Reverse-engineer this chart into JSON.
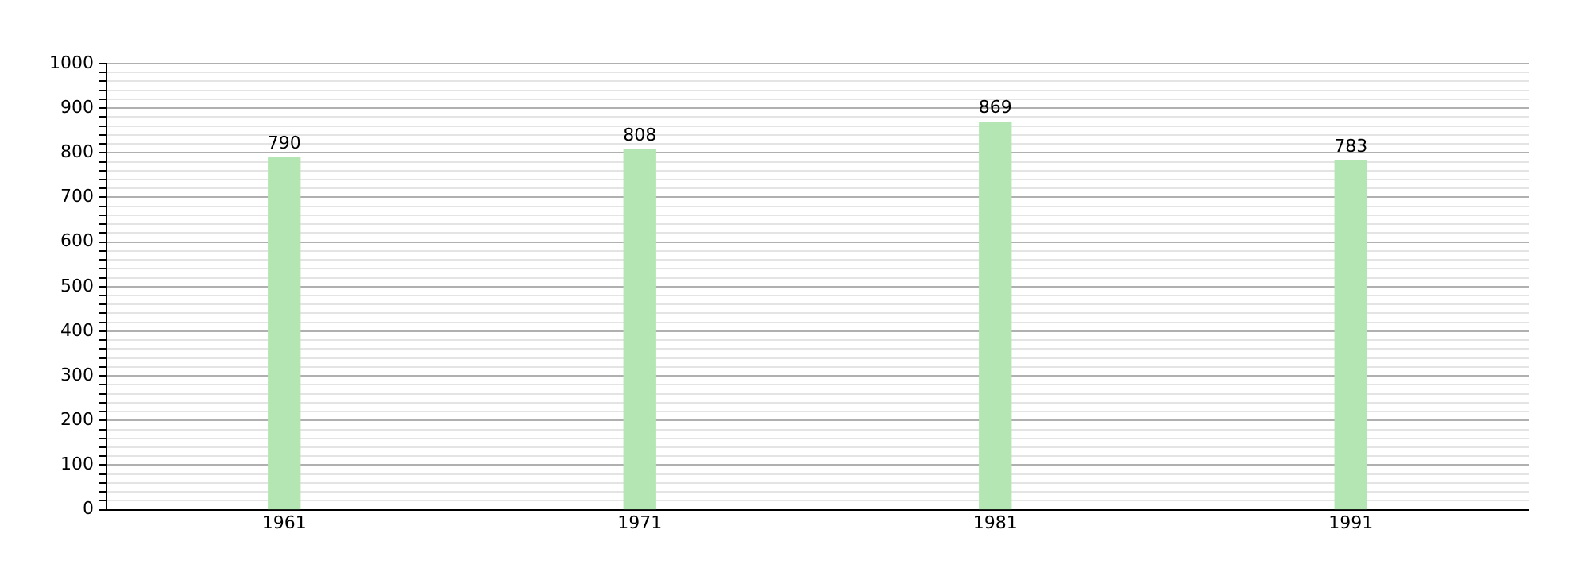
{
  "chart_data": {
    "type": "bar",
    "categories": [
      "1961",
      "1971",
      "1981",
      "1991"
    ],
    "values": [
      790,
      808,
      869,
      783
    ],
    "color": "#b3e6b3",
    "data_labels": true,
    "ylim": [
      0,
      1000
    ],
    "yticks": [
      0,
      {
        "value": 20,
        "label": null
      },
      {
        "value": 40,
        "label": null
      },
      {
        "value": 60,
        "label": null
      },
      {
        "value": 80,
        "label": null
      },
      100,
      {
        "value": 120,
        "label": null
      },
      {
        "value": 140,
        "label": null
      },
      {
        "value": 160,
        "label": null
      },
      {
        "value": 180,
        "label": null
      },
      200,
      {
        "value": 220,
        "label": null
      },
      {
        "value": 240,
        "label": null
      },
      {
        "value": 260,
        "label": null
      },
      {
        "value": 280,
        "label": null
      },
      300,
      {
        "value": 320,
        "label": null
      },
      {
        "value": 340,
        "label": null
      },
      {
        "value": 360,
        "label": null
      },
      {
        "value": 380,
        "label": null
      },
      400,
      {
        "value": 420,
        "label": null
      },
      {
        "value": 440,
        "label": null
      },
      {
        "value": 460,
        "label": null
      },
      {
        "value": 480,
        "label": null
      },
      500,
      {
        "value": 520,
        "label": null
      },
      {
        "value": 540,
        "label": null
      },
      {
        "value": 560,
        "label": null
      },
      {
        "value": 580,
        "label": null
      },
      600,
      {
        "value": 620,
        "label": null
      },
      {
        "value": 640,
        "label": null
      },
      {
        "value": 660,
        "label": null
      },
      {
        "value": 680,
        "label": null
      },
      700,
      {
        "value": 720,
        "label": null
      },
      {
        "value": 740,
        "label": null
      },
      {
        "value": 760,
        "label": null
      },
      {
        "value": 780,
        "label": null
      },
      800,
      {
        "value": 820,
        "label": null
      },
      {
        "value": 840,
        "label": null
      },
      {
        "value": 860,
        "label": null
      },
      {
        "value": 880,
        "label": null
      },
      900,
      {
        "value": 920,
        "label": null
      },
      {
        "value": 940,
        "label": null
      },
      {
        "value": 960,
        "label": null
      },
      {
        "value": 980,
        "label": null
      },
      1000
    ],
    "grid": "y",
    "legend": false
  }
}
